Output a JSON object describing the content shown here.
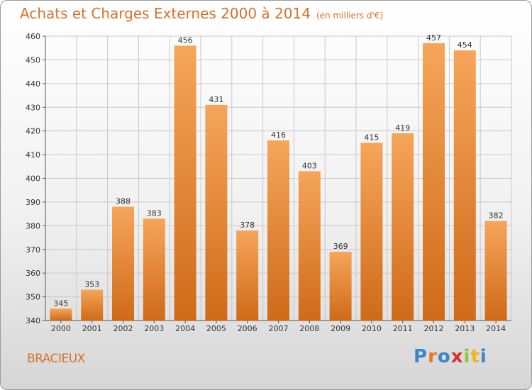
{
  "chart_data": {
    "type": "bar",
    "title": "Achats et Charges Externes 2000 à 2014",
    "subtitle": "(en milliers d'€)",
    "categories": [
      "2000",
      "2001",
      "2002",
      "2003",
      "2004",
      "2005",
      "2006",
      "2007",
      "2008",
      "2009",
      "2010",
      "2011",
      "2012",
      "2013",
      "2014"
    ],
    "values": [
      345,
      353,
      388,
      383,
      456,
      431,
      378,
      416,
      403,
      369,
      415,
      419,
      457,
      454,
      382
    ],
    "ylim": [
      340,
      460
    ],
    "yticks": [
      340,
      350,
      360,
      370,
      380,
      390,
      400,
      410,
      420,
      430,
      440,
      450,
      460
    ],
    "grid": true,
    "colors": {
      "bar_light": "#f6a55a",
      "bar_dark": "#cf6a18",
      "grid": "#c8c8c8",
      "title": "#d4732a"
    }
  },
  "footer": {
    "commune": "BRACIEUX",
    "logo_letters": [
      "P",
      "r",
      "o",
      "x",
      "i",
      "t",
      "i"
    ],
    "logo_colors": [
      "#3b86c8",
      "#e8772a",
      "#3b86c8",
      "#d9312a",
      "#8dc63f",
      "#f0b41e",
      "#3b86c8"
    ]
  }
}
